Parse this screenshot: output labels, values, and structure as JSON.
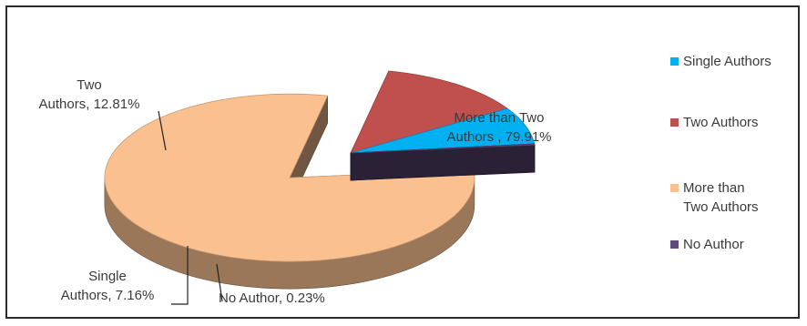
{
  "chart_data": {
    "type": "pie",
    "style": "3d-exploded",
    "title": "",
    "slices": [
      {
        "name": "Single Authors",
        "value": 7.16,
        "color": "#00b0f0",
        "label_lines": [
          "Single",
          "Authors, 7.16%"
        ]
      },
      {
        "name": "Two Authors",
        "value": 12.81,
        "color": "#c0504d",
        "label_lines": [
          "Two",
          "Authors, 12.81%"
        ]
      },
      {
        "name": "More than Two Authors",
        "value": 79.91,
        "color": "#fac090",
        "label_lines": [
          "More than Two",
          "Authors , 79.91%"
        ]
      },
      {
        "name": "No Author",
        "value": 0.23,
        "color": "#604a7b",
        "label_lines": [
          "No Author, 0.23%"
        ]
      }
    ],
    "legend": {
      "position": "right",
      "entries": [
        {
          "lines": [
            "Single Authors"
          ],
          "color": "#00b0f0"
        },
        {
          "lines": [
            "Two Authors"
          ],
          "color": "#c0504d"
        },
        {
          "lines": [
            "More than",
            "Two Authors"
          ],
          "color": "#fac090"
        },
        {
          "lines": [
            "No Author"
          ],
          "color": "#604a7b"
        }
      ]
    }
  }
}
